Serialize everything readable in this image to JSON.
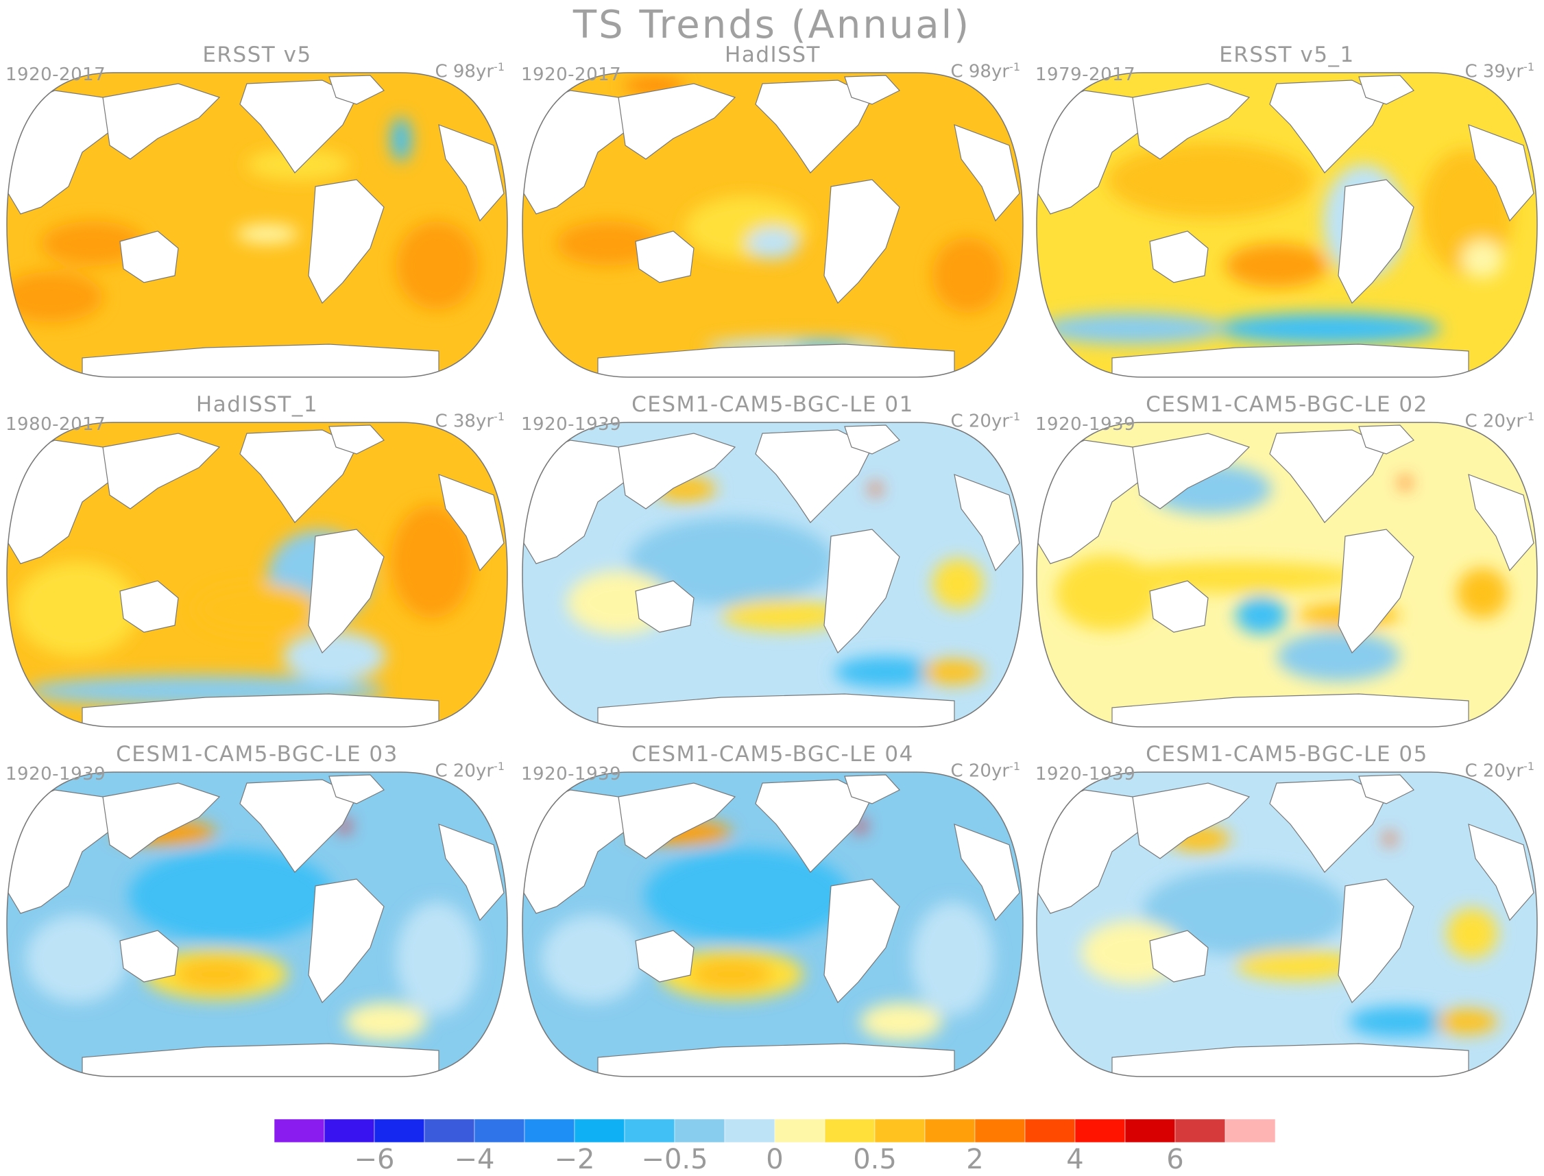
{
  "title": "TS Trends (Annual)",
  "panels": [
    {
      "name": "ERSST v5",
      "years": "1920-2017",
      "unit": "C 98yr",
      "unit_sup": "-1",
      "palette": "warm"
    },
    {
      "name": "HadISST",
      "years": "1920-2017",
      "unit": "C 98yr",
      "unit_sup": "-1",
      "palette": "warm2"
    },
    {
      "name": "ERSST v5_1",
      "years": "1979-2017",
      "unit": "C 39yr",
      "unit_sup": "-1",
      "palette": "mixed_warm"
    },
    {
      "name": "HadISST_1",
      "years": "1980-2017",
      "unit": "C 38yr",
      "unit_sup": "-1",
      "palette": "mixed_warm2"
    },
    {
      "name": "CESM1-CAM5-BGC-LE 01",
      "years": "1920-1939",
      "unit": "C 20yr",
      "unit_sup": "-1",
      "palette": "cool"
    },
    {
      "name": "CESM1-CAM5-BGC-LE 02",
      "years": "1920-1939",
      "unit": "C 20yr",
      "unit_sup": "-1",
      "palette": "mixed"
    },
    {
      "name": "CESM1-CAM5-BGC-LE 03",
      "years": "1920-1939",
      "unit": "C 20yr",
      "unit_sup": "-1",
      "palette": "cool2"
    },
    {
      "name": "CESM1-CAM5-BGC-LE 04",
      "years": "1920-1939",
      "unit": "C 20yr",
      "unit_sup": "-1",
      "palette": "cool2"
    },
    {
      "name": "CESM1-CAM5-BGC-LE 05",
      "years": "1920-1939",
      "unit": "C 20yr",
      "unit_sup": "-1",
      "palette": "cool"
    }
  ],
  "colorbar": {
    "colors": [
      "#8a1cf0",
      "#3a14f0",
      "#1428f0",
      "#3a5cdc",
      "#2f74e8",
      "#1e90f5",
      "#10b0f5",
      "#40c0f5",
      "#88ccee",
      "#bde3f7",
      "#fff7a8",
      "#ffe03a",
      "#ffc21e",
      "#ff9f0a",
      "#ff7a00",
      "#ff4a00",
      "#ff1400",
      "#d80000",
      "#d63a3a",
      "#ffb4b4"
    ],
    "labels": [
      {
        "text": "−6",
        "after_index": 1
      },
      {
        "text": "−4",
        "after_index": 3
      },
      {
        "text": "−2",
        "after_index": 5
      },
      {
        "text": "−0.5",
        "after_index": 7
      },
      {
        "text": "0",
        "after_index": 9
      },
      {
        "text": "0.5",
        "after_index": 11
      },
      {
        "text": "2",
        "after_index": 13
      },
      {
        "text": "4",
        "after_index": 15
      },
      {
        "text": "6",
        "after_index": 17
      }
    ]
  }
}
